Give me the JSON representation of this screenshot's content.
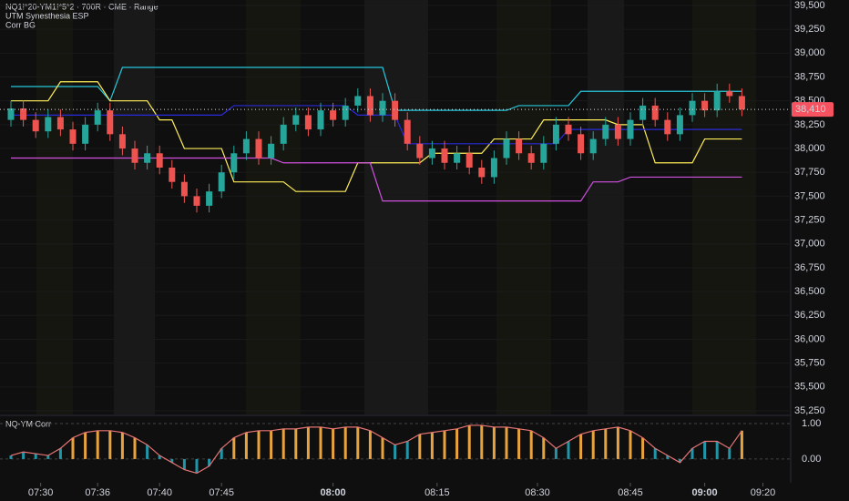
{
  "chart_data": [
    {
      "type": "candlestick",
      "title": "NQ1!*20-YM1!*5*2 · 700R · CME · Range",
      "indicators": [
        "UTM Synesthesia ESP",
        "Corr BG"
      ],
      "up_color": "#26a69a",
      "down_color": "#ef5350",
      "open": [
        38300,
        38420,
        38300,
        38180,
        38330,
        38200,
        38050,
        38250,
        38400,
        38150,
        38000,
        37850,
        37950,
        37800,
        37650,
        37500,
        37400,
        37550,
        37750,
        37950,
        38100,
        37900,
        38050,
        38250,
        38350,
        38200,
        38400,
        38300,
        38450,
        38550,
        38350,
        38500,
        38300,
        38050,
        37900,
        38000,
        37850,
        37950,
        37800,
        37700,
        37900,
        38100,
        37950,
        37850,
        38050,
        38250,
        38150,
        37950,
        38100,
        38250,
        38100,
        38300,
        38450,
        38300,
        38150,
        38350,
        38500,
        38400,
        38600,
        38550
      ],
      "high": [
        38500,
        38500,
        38380,
        38410,
        38410,
        38280,
        38330,
        38480,
        38480,
        38230,
        38080,
        38030,
        38030,
        37880,
        37730,
        37580,
        37630,
        37830,
        38030,
        38180,
        38180,
        38130,
        38330,
        38430,
        38430,
        38480,
        38480,
        38530,
        38630,
        38630,
        38580,
        38580,
        38380,
        38130,
        38080,
        38080,
        38030,
        38030,
        37880,
        37980,
        38180,
        38180,
        38030,
        38130,
        38330,
        38330,
        38230,
        38180,
        38330,
        38330,
        38380,
        38530,
        38530,
        38380,
        38430,
        38580,
        38580,
        38680,
        38680,
        38630
      ],
      "low": [
        38230,
        38230,
        38110,
        38110,
        38130,
        37980,
        37980,
        38180,
        38080,
        37930,
        37780,
        37780,
        37730,
        37580,
        37430,
        37330,
        37330,
        37480,
        37680,
        37880,
        37830,
        37830,
        37980,
        38180,
        38130,
        38130,
        38230,
        38230,
        38380,
        38280,
        38280,
        38230,
        37980,
        37830,
        37830,
        37780,
        37780,
        37730,
        37630,
        37630,
        37830,
        37880,
        37780,
        37780,
        37980,
        38080,
        37880,
        37880,
        38030,
        38030,
        38030,
        38230,
        38230,
        38080,
        38080,
        38280,
        38330,
        38330,
        38480,
        38340
      ],
      "close": [
        38420,
        38300,
        38180,
        38330,
        38200,
        38050,
        38250,
        38400,
        38150,
        38000,
        37850,
        37950,
        37800,
        37650,
        37500,
        37400,
        37550,
        37750,
        37950,
        38100,
        37900,
        38050,
        38250,
        38350,
        38200,
        38400,
        38300,
        38450,
        38550,
        38350,
        38500,
        38300,
        38050,
        37900,
        38000,
        37850,
        37950,
        37800,
        37700,
        37900,
        38100,
        37950,
        37850,
        38050,
        38250,
        38150,
        37950,
        38100,
        38250,
        38100,
        38300,
        38450,
        38300,
        38150,
        38350,
        38500,
        38400,
        38600,
        38550,
        38410
      ],
      "lines": [
        {
          "color": "#26c6da",
          "values": [
            38650,
            38650,
            38650,
            38650,
            38650,
            38650,
            38650,
            38650,
            38500,
            38850,
            38850,
            38850,
            38850,
            38850,
            38850,
            38850,
            38850,
            38850,
            38850,
            38850,
            38850,
            38850,
            38850,
            38850,
            38850,
            38850,
            38850,
            38850,
            38850,
            38850,
            38850,
            38400,
            38400,
            38400,
            38400,
            38400,
            38400,
            38400,
            38400,
            38400,
            38400,
            38450,
            38450,
            38450,
            38450,
            38450,
            38600,
            38600,
            38600,
            38600,
            38600,
            38600,
            38600,
            38600,
            38600,
            38600,
            38600,
            38600,
            38600,
            38600
          ]
        },
        {
          "color": "#ffee58",
          "values": [
            38500,
            38500,
            38500,
            38500,
            38700,
            38700,
            38700,
            38700,
            38500,
            38500,
            38500,
            38500,
            38300,
            38300,
            38000,
            38000,
            38000,
            38000,
            37650,
            37650,
            37650,
            37650,
            37650,
            37550,
            37550,
            37550,
            37550,
            37550,
            37850,
            37850,
            37850,
            37850,
            37850,
            37850,
            37950,
            37950,
            37950,
            37950,
            37950,
            38100,
            38100,
            38100,
            38100,
            38300,
            38300,
            38300,
            38300,
            38300,
            38300,
            38250,
            38250,
            38250,
            37850,
            37850,
            37850,
            37850,
            38100,
            38100,
            38100,
            38100
          ]
        },
        {
          "color": "#2a2ad8",
          "values": [
            38350,
            38350,
            38350,
            38350,
            38350,
            38350,
            38350,
            38350,
            38350,
            38350,
            38350,
            38350,
            38350,
            38350,
            38350,
            38350,
            38350,
            38350,
            38450,
            38450,
            38450,
            38450,
            38450,
            38450,
            38450,
            38450,
            38450,
            38450,
            38350,
            38350,
            38350,
            38350,
            38050,
            38050,
            38050,
            38050,
            38050,
            38050,
            38050,
            38050,
            38050,
            38050,
            38050,
            38050,
            38050,
            38200,
            38200,
            38200,
            38200,
            38200,
            38200,
            38200,
            38200,
            38200,
            38200,
            38200,
            38200,
            38200,
            38200,
            38200
          ]
        },
        {
          "color": "#d050e0",
          "values": [
            37900,
            37900,
            37900,
            37900,
            37900,
            37900,
            37900,
            37900,
            37900,
            37900,
            37900,
            37900,
            37900,
            37900,
            37900,
            37900,
            37900,
            37900,
            37900,
            37900,
            37900,
            37900,
            37850,
            37850,
            37850,
            37850,
            37850,
            37850,
            37850,
            37850,
            37450,
            37450,
            37450,
            37450,
            37450,
            37450,
            37450,
            37450,
            37450,
            37450,
            37450,
            37450,
            37450,
            37450,
            37450,
            37450,
            37450,
            37650,
            37650,
            37650,
            37700,
            37700,
            37700,
            37700,
            37700,
            37700,
            37700,
            37700,
            37700,
            37700
          ]
        }
      ],
      "price_label": {
        "value": 38410,
        "label": "38,410"
      },
      "ylim": [
        35212,
        39557
      ],
      "yticks": [
        {
          "value": 35250,
          "label": "35,250"
        },
        {
          "value": 35500,
          "label": "35,500"
        },
        {
          "value": 35750,
          "label": "35,750"
        },
        {
          "value": 36000,
          "label": "36,000"
        },
        {
          "value": 36250,
          "label": "36,250"
        },
        {
          "value": 36500,
          "label": "36,500"
        },
        {
          "value": 36750,
          "label": "36,750"
        },
        {
          "value": 37000,
          "label": "37,000"
        },
        {
          "value": 37250,
          "label": "37,250"
        },
        {
          "value": 37500,
          "label": "37,500"
        },
        {
          "value": 37750,
          "label": "37,750"
        },
        {
          "value": 38000,
          "label": "38,000"
        },
        {
          "value": 38250,
          "label": "38,250"
        },
        {
          "value": 38500,
          "label": "38,500"
        },
        {
          "value": 38750,
          "label": "38,750"
        },
        {
          "value": 39000,
          "label": "39,000"
        },
        {
          "value": 39250,
          "label": "39,250"
        },
        {
          "value": 39500,
          "label": "39,500"
        }
      ],
      "xticks": [
        {
          "value": 2.4,
          "label": "07:30"
        },
        {
          "value": 7,
          "label": "07:36"
        },
        {
          "value": 12,
          "label": "07:40"
        },
        {
          "value": 17,
          "label": "07:45"
        },
        {
          "value": 26,
          "label": "08:00"
        },
        {
          "value": 34.4,
          "label": "08:15"
        },
        {
          "value": 42.5,
          "label": "08:30"
        },
        {
          "value": 50,
          "label": "08:45"
        },
        {
          "value": 56,
          "label": "09:00"
        },
        {
          "value": 60.7,
          "label": "09:20"
        }
      ]
    },
    {
      "type": "bar",
      "title": "NQ-YM Corr",
      "values": [
        0.1,
        0.2,
        0.15,
        0.1,
        0.3,
        0.6,
        0.75,
        0.8,
        0.8,
        0.75,
        0.6,
        0.4,
        0.1,
        -0.1,
        -0.3,
        -0.4,
        -0.2,
        0.3,
        0.6,
        0.75,
        0.8,
        0.8,
        0.85,
        0.85,
        0.9,
        0.9,
        0.85,
        0.9,
        0.9,
        0.8,
        0.6,
        0.4,
        0.5,
        0.7,
        0.75,
        0.8,
        0.85,
        0.95,
        0.95,
        0.9,
        0.9,
        0.85,
        0.8,
        0.6,
        0.3,
        0.5,
        0.7,
        0.8,
        0.85,
        0.9,
        0.8,
        0.6,
        0.3,
        0.1,
        -0.1,
        0.3,
        0.5,
        0.5,
        0.3,
        0.8
      ],
      "bar_colors": [
        "#2196a8",
        "#2196a8",
        "#2196a8",
        "#2196a8",
        "#2196a8",
        "#e8a33d",
        "#e8a33d",
        "#e8a33d",
        "#e8a33d",
        "#e8a33d",
        "#e8a33d",
        "#2196a8",
        "#2196a8",
        "#2196a8",
        "#2196a8",
        "#2196a8",
        "#2196a8",
        "#2196a8",
        "#e8a33d",
        "#e8a33d",
        "#e8a33d",
        "#e8a33d",
        "#e8a33d",
        "#e8a33d",
        "#e8a33d",
        "#e8a33d",
        "#e8a33d",
        "#e8a33d",
        "#e8a33d",
        "#e8a33d",
        "#e8a33d",
        "#2196a8",
        "#2196a8",
        "#e8a33d",
        "#e8a33d",
        "#e8a33d",
        "#e8a33d",
        "#e8a33d",
        "#e8a33d",
        "#e8a33d",
        "#e8a33d",
        "#e8a33d",
        "#e8a33d",
        "#e8a33d",
        "#2196a8",
        "#2196a8",
        "#e8a33d",
        "#e8a33d",
        "#e8a33d",
        "#e8a33d",
        "#e8a33d",
        "#e8a33d",
        "#2196a8",
        "#2196a8",
        "#2196a8",
        "#2196a8",
        "#2196a8",
        "#2196a8",
        "#2196a8",
        "#e8a33d"
      ],
      "line_color": "#e57373",
      "ylim": [
        -0.67,
        1.18
      ],
      "yticks": [
        {
          "value": 0,
          "label": "0.00"
        },
        {
          "value": 1,
          "label": "1.00"
        }
      ]
    }
  ]
}
